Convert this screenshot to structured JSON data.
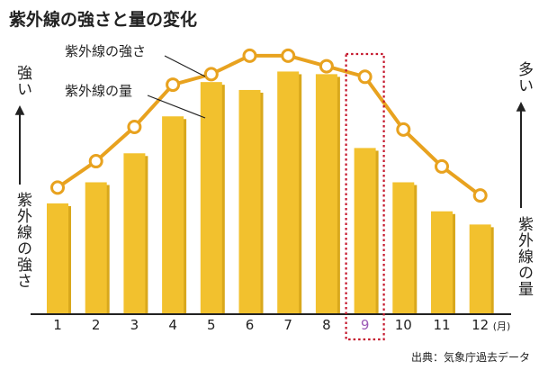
{
  "title": "紫外線の強さと量の変化",
  "left_axis": {
    "top_label": "強い",
    "bottom_label": "紫外線の強さ"
  },
  "right_axis": {
    "top_label": "多い",
    "bottom_label": "紫外線の量"
  },
  "source": "出典：気象庁過去データ",
  "colors": {
    "bar": "#F2C12E",
    "bar_shadow": "#D9A81C",
    "line": "#E8A21F",
    "marker_fill": "#ffffff",
    "highlight_box": "#C4172C",
    "highlight_text": "#9B59B6",
    "axis": "#222222"
  },
  "chart_data": {
    "type": "bar",
    "categories": [
      "1",
      "2",
      "3",
      "4",
      "5",
      "6",
      "7",
      "8",
      "9",
      "10",
      "11",
      "12"
    ],
    "x_unit": "(月)",
    "highlight_category": "9",
    "series": [
      {
        "name": "紫外線の強さ",
        "type": "line",
        "values": [
          48,
          58,
          71,
          87,
          91,
          98,
          98,
          94,
          90,
          70,
          56,
          45
        ]
      },
      {
        "name": "紫外線の量",
        "type": "bar",
        "values": [
          42,
          50,
          61,
          75,
          88,
          85,
          92,
          91,
          63,
          50,
          39,
          34
        ]
      }
    ],
    "ylim": [
      0,
      100
    ],
    "grid": false,
    "title": "紫外線の強さと量の変化"
  }
}
